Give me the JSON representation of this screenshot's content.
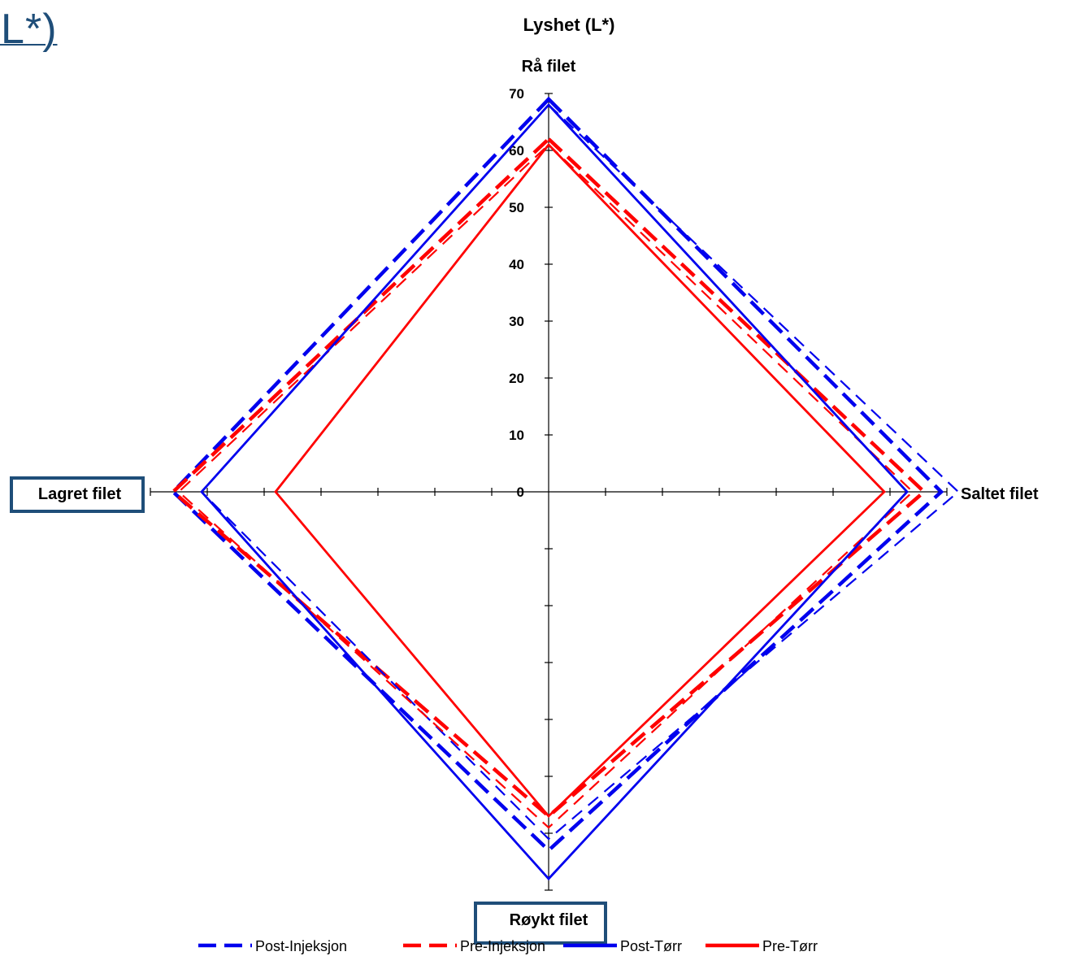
{
  "slide_title": "Lyshet (L*)",
  "chart_data": {
    "type": "radar",
    "title": "Lyshet (L*)",
    "categories": [
      "Rå filet",
      "Saltet filet",
      "Røykt filet",
      "Lagret filet"
    ],
    "radial_ticks": [
      "0",
      "10",
      "20",
      "30",
      "40",
      "50",
      "60",
      "70"
    ],
    "rmin": 0,
    "rmax": 70,
    "tick_step": 10,
    "series": [
      {
        "name": "Post-Injeksjon",
        "values": [
          69,
          69,
          63,
          66
        ],
        "color": "#0000ee",
        "style": "long-dash",
        "weight": "heavy"
      },
      {
        "name": "Pre-Injeksjon",
        "values": [
          62,
          66,
          57,
          66
        ],
        "color": "#ff0000",
        "style": "long-dash",
        "weight": "heavy"
      },
      {
        "name": "Post-Injeksjon",
        "values": [
          68,
          72,
          61,
          61
        ],
        "color": "#0000ee",
        "style": "dash",
        "weight": "thin"
      },
      {
        "name": "Pre-Injeksjon",
        "values": [
          61,
          64,
          59,
          65
        ],
        "color": "#ff0000",
        "style": "dash",
        "weight": "thin"
      },
      {
        "name": "Post-Tørr",
        "values": [
          68,
          63,
          68,
          61
        ],
        "color": "#0000ee",
        "style": "solid",
        "weight": "normal"
      },
      {
        "name": "Pre-Tørr",
        "values": [
          61,
          59,
          57,
          48
        ],
        "color": "#ff0000",
        "style": "solid",
        "weight": "normal"
      }
    ],
    "legend": [
      {
        "name": "Post-Injeksjon",
        "color": "#0000ee",
        "style": "dash"
      },
      {
        "name": "Pre-Injeksjon",
        "color": "#ff0000",
        "style": "dash"
      },
      {
        "name": "Post-Tørr",
        "color": "#0000ee",
        "style": "solid"
      },
      {
        "name": "Pre-Tørr",
        "color": "#ff0000",
        "style": "solid"
      }
    ],
    "legend_position": "bottom",
    "grid": false,
    "boxed_categories": [
      "Lagret filet",
      "Røykt filet"
    ],
    "box_color": "#1f4e79"
  }
}
